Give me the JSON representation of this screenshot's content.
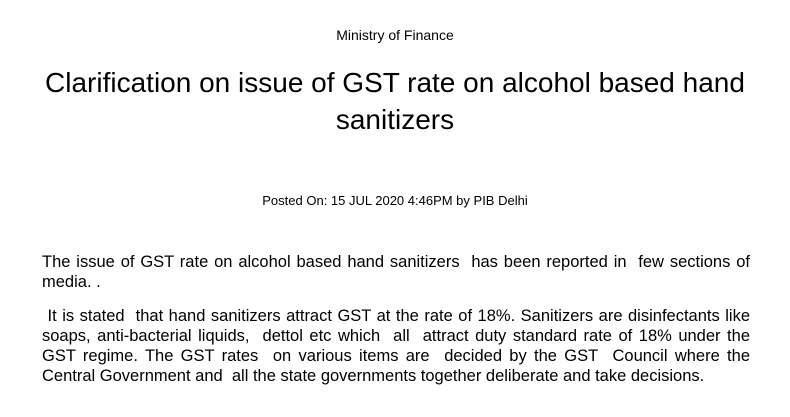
{
  "header": {
    "ministry": "Ministry of Finance",
    "title": "Clarification on issue of GST rate on alcohol based hand sanitizers",
    "posted": "Posted On: 15 JUL 2020 4:46PM by PIB Delhi"
  },
  "body": {
    "paragraphs": [
      "The issue of GST rate on alcohol based hand sanitizers  has been reported in  few sections of media. .",
      " It is stated  that hand sanitizers attract GST at the rate of 18%. Sanitizers are disinfectants like soaps, anti-bacterial liquids,  dettol etc which  all  attract duty standard rate of 18% under the GST regime. The GST rates  on various items are  decided by the GST  Council where the Central Government and  all the state governments together deliberate and take decisions."
    ]
  }
}
